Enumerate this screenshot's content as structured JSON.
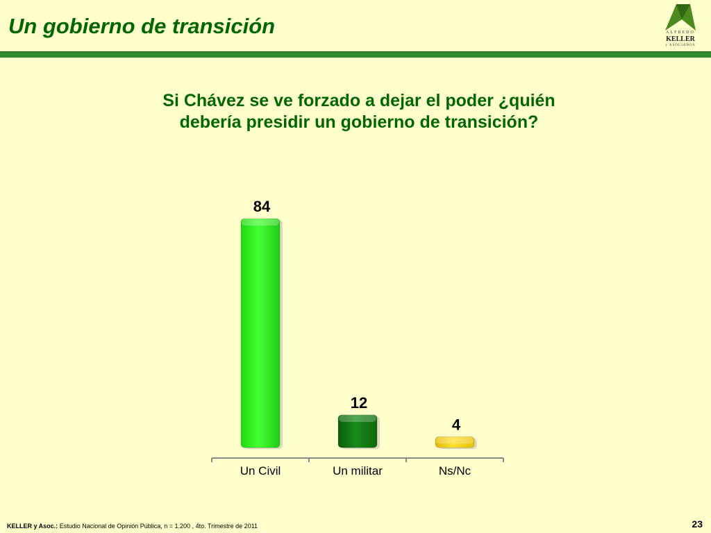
{
  "slide": {
    "title": "Un gobierno de transición",
    "question": "Si Chávez se ve forzado a dejar el poder ¿quién debería presidir un gobierno de transición?",
    "page_number": "23"
  },
  "logo": {
    "line1": "ALFREDO",
    "line2": "KELLER",
    "line3": "y ASOCIADOS",
    "color": "#4a8a1e"
  },
  "footer": {
    "source_bold": "KELLER y Asoc.:",
    "source_text": " Estudio Nacional de Opinión Pública, n = 1.200 , 4to. Trimestre de 2011"
  },
  "chart_data": {
    "type": "bar",
    "categories": [
      "Un Civil",
      "Un militar",
      "Ns/Nc"
    ],
    "values": [
      84,
      12,
      4
    ],
    "colors": [
      "#33ee22",
      "#117711",
      "#eecc11"
    ],
    "ylim": [
      0,
      84
    ],
    "grid": false,
    "legend": "none"
  }
}
